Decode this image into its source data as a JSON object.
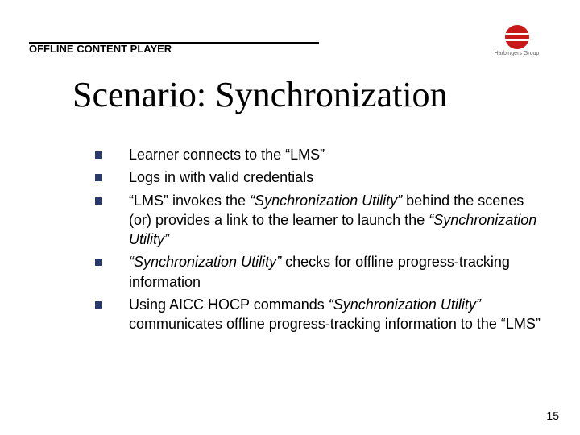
{
  "header": {
    "label": "OFFLINE CONTENT PLAYER",
    "logo_text": "Harbingers Group"
  },
  "title": "Scenario: Synchronization",
  "bullets": [
    {
      "pre": "Learner connects to the “LMS”",
      "em": "",
      "post": ""
    },
    {
      "pre": "Logs in with valid credentials",
      "em": "",
      "post": ""
    },
    {
      "pre": "“LMS” invokes the ",
      "em": "“Synchronization Utility”",
      "post": " behind the scenes (or) provides a link to the learner to launch the ",
      "em2": "“Synchronization Utility”",
      "post2": ""
    },
    {
      "pre": "",
      "em": "“Synchronization Utility”",
      "post": " checks for offline progress-tracking information"
    },
    {
      "pre": "Using AICC HOCP commands ",
      "em": "“Synchronization Utility”",
      "post": " communicates offline progress-tracking information to the “LMS”"
    }
  ],
  "page_number": "15",
  "colors": {
    "bullet_square": "#293a6a",
    "logo_red": "#c91818",
    "text": "#000000",
    "background": "#ffffff"
  },
  "typography": {
    "title_font": "Times New Roman",
    "title_size_pt": 33,
    "body_font": "Verdana",
    "body_size_pt": 14,
    "header_size_pt": 10
  }
}
